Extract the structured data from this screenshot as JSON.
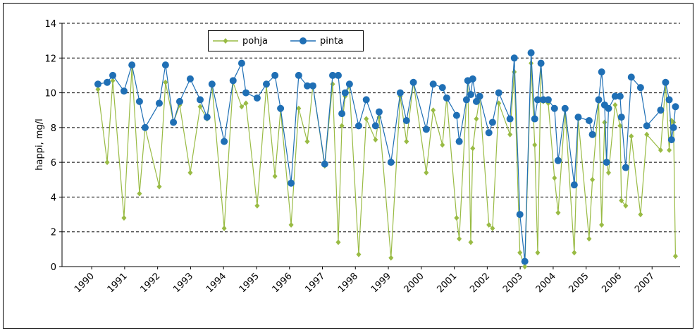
{
  "chart_data": {
    "type": "line",
    "y_label": "happi, mg/l",
    "x": [
      1990.19,
      1990.47,
      1990.64,
      1990.98,
      1991.22,
      1991.45,
      1991.62,
      1992.05,
      1992.24,
      1992.48,
      1992.67,
      1992.99,
      1993.29,
      1993.5,
      1993.65,
      1994.02,
      1994.29,
      1994.55,
      1994.68,
      1995.02,
      1995.3,
      1995.56,
      1995.73,
      1996.05,
      1996.28,
      1996.54,
      1996.71,
      1997.07,
      1997.31,
      1997.48,
      1997.59,
      1997.69,
      1997.82,
      1998.1,
      1998.33,
      1998.61,
      1998.72,
      1999.08,
      1999.36,
      1999.55,
      1999.76,
      2000.15,
      2000.36,
      2000.64,
      2000.77,
      2001.07,
      2001.15,
      2001.37,
      2001.41,
      2001.5,
      2001.56,
      2001.67,
      2001.77,
      2002.05,
      2002.16,
      2002.35,
      2002.69,
      2002.82,
      2002.99,
      2003.14,
      2003.33,
      2003.44,
      2003.53,
      2003.63,
      2003.7,
      2003.85,
      2004.04,
      2004.15,
      2004.36,
      2004.64,
      2004.76,
      2005.09,
      2005.19,
      2005.38,
      2005.47,
      2005.56,
      2005.62,
      2005.68,
      2005.88,
      2006.03,
      2006.07,
      2006.2,
      2006.37,
      2006.65,
      2006.84,
      2007.26,
      2007.41,
      2007.52,
      2007.59,
      2007.65,
      2007.71
    ],
    "series": [
      {
        "name": "pohja",
        "color": "#99bb44",
        "marker": "diamond",
        "values": [
          10.2,
          6.0,
          10.7,
          2.8,
          11.5,
          4.2,
          8.0,
          4.6,
          10.6,
          8.3,
          9.3,
          5.4,
          9.2,
          8.5,
          10.4,
          2.2,
          10.6,
          9.2,
          9.4,
          3.5,
          10.4,
          5.2,
          9.0,
          2.4,
          9.1,
          7.2,
          10.4,
          5.8,
          10.5,
          1.4,
          8.1,
          9.8,
          10.4,
          0.7,
          8.5,
          7.3,
          8.6,
          0.5,
          9.8,
          7.2,
          10.6,
          5.4,
          9.0,
          7.0,
          9.7,
          2.8,
          1.6,
          9.6,
          10.6,
          1.4,
          6.8,
          8.5,
          9.7,
          2.4,
          2.2,
          9.4,
          7.6,
          11.2,
          0.8,
          0.0,
          11.7,
          7.0,
          0.8,
          11.6,
          9.5,
          9.4,
          5.1,
          3.1,
          9.0,
          0.8,
          8.5,
          1.6,
          5.0,
          9.5,
          2.4,
          8.3,
          6.0,
          5.4,
          9.3,
          8.1,
          3.8,
          3.5,
          7.5,
          3.0,
          7.6,
          6.7,
          10.5,
          6.7,
          8.4,
          8.3,
          0.6
        ]
      },
      {
        "name": "pinta",
        "color": "#1f6fb5",
        "marker": "circle",
        "values": [
          10.5,
          10.6,
          11.0,
          10.1,
          11.6,
          9.5,
          8.0,
          9.4,
          11.6,
          8.3,
          9.5,
          10.8,
          9.6,
          8.6,
          10.5,
          7.2,
          10.7,
          11.7,
          10.0,
          9.7,
          10.5,
          11.0,
          9.1,
          4.8,
          11.0,
          10.4,
          10.4,
          5.9,
          11.0,
          11.0,
          8.8,
          10.0,
          10.5,
          8.1,
          9.6,
          8.1,
          8.9,
          6.0,
          10.0,
          8.4,
          10.6,
          7.9,
          10.5,
          10.3,
          9.7,
          8.7,
          7.2,
          9.6,
          10.7,
          9.9,
          10.8,
          9.5,
          9.8,
          7.7,
          8.3,
          10.0,
          8.5,
          12.0,
          3.0,
          0.3,
          12.3,
          8.5,
          9.6,
          11.7,
          9.6,
          9.6,
          9.1,
          6.1,
          9.1,
          4.7,
          8.6,
          8.4,
          7.6,
          9.6,
          11.2,
          9.3,
          6.0,
          9.1,
          9.8,
          9.8,
          8.6,
          5.7,
          10.9,
          10.3,
          8.1,
          9.0,
          10.6,
          9.6,
          7.3,
          8.0,
          9.2
        ]
      }
    ],
    "xlim": [
      1989.1,
      2007.85
    ],
    "xticks": [
      1990,
      1991,
      1992,
      1993,
      1994,
      1995,
      1996,
      1997,
      1998,
      1999,
      2000,
      2001,
      2002,
      2003,
      2004,
      2005,
      2006,
      2007
    ],
    "ylim": [
      0,
      14
    ],
    "yticks": [
      0,
      2,
      4,
      6,
      8,
      10,
      12,
      14
    ],
    "grid": true
  }
}
